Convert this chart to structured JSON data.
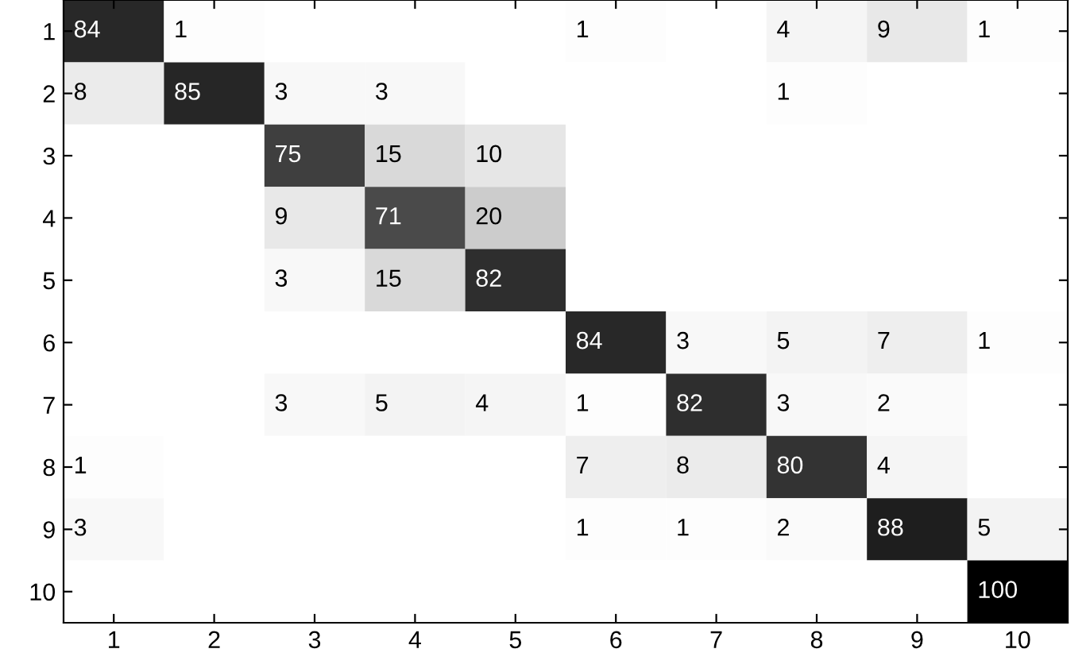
{
  "chart_data": {
    "type": "heatmap",
    "categories": [
      "1",
      "2",
      "3",
      "4",
      "5",
      "6",
      "7",
      "8",
      "9",
      "10"
    ],
    "y_categories": [
      "1",
      "2",
      "3",
      "4",
      "5",
      "6",
      "7",
      "8",
      "9",
      "10"
    ],
    "cells": [
      [
        84,
        1,
        null,
        null,
        null,
        1,
        null,
        4,
        9,
        1
      ],
      [
        8,
        85,
        3,
        3,
        null,
        null,
        null,
        1,
        null,
        null
      ],
      [
        null,
        null,
        75,
        15,
        10,
        null,
        null,
        null,
        null,
        null
      ],
      [
        null,
        null,
        9,
        71,
        20,
        null,
        null,
        null,
        null,
        null
      ],
      [
        null,
        null,
        3,
        15,
        82,
        null,
        null,
        null,
        null,
        null
      ],
      [
        null,
        null,
        null,
        null,
        null,
        84,
        3,
        5,
        7,
        1
      ],
      [
        null,
        null,
        3,
        5,
        4,
        1,
        82,
        3,
        2,
        null
      ],
      [
        1,
        null,
        null,
        null,
        null,
        7,
        8,
        80,
        4,
        null
      ],
      [
        3,
        null,
        null,
        null,
        null,
        1,
        1,
        2,
        88,
        5
      ],
      [
        null,
        null,
        null,
        null,
        null,
        null,
        null,
        null,
        null,
        100
      ]
    ],
    "data_labels": true
  }
}
